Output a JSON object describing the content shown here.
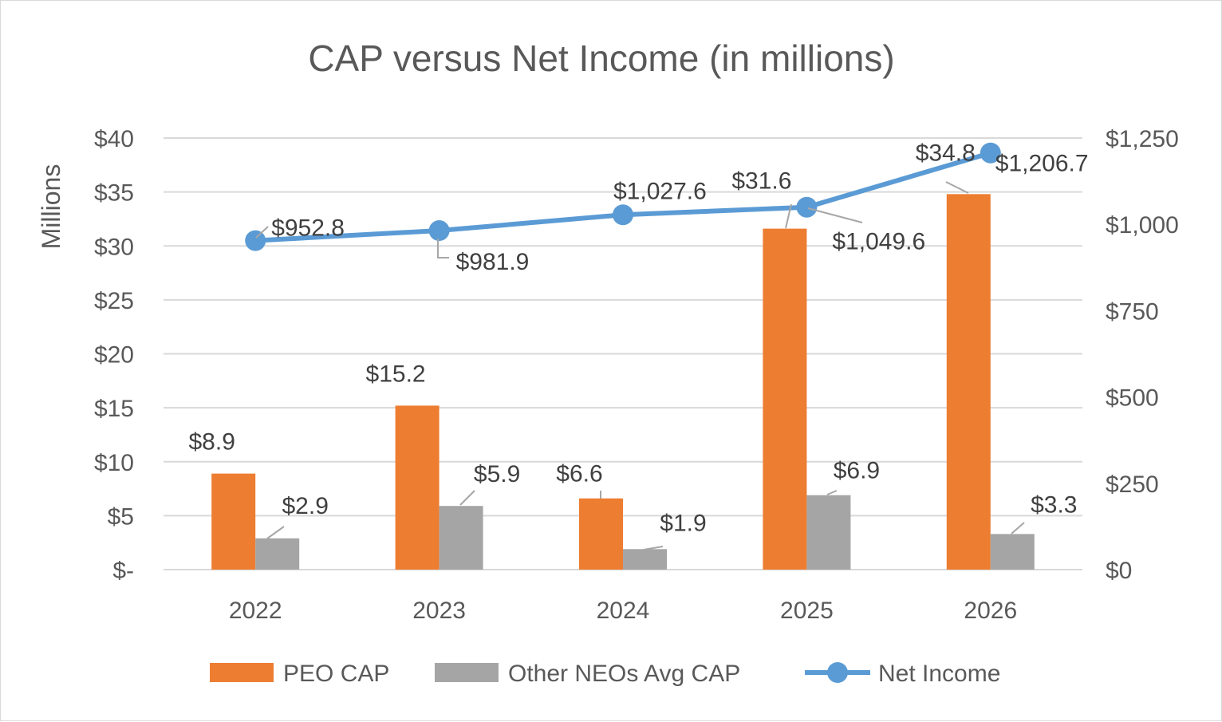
{
  "chart_data": {
    "type": "bar",
    "title": "CAP versus Net Income (in millions)",
    "categories": [
      "2022",
      "2023",
      "2024",
      "2025",
      "2026"
    ],
    "series": [
      {
        "name": "PEO CAP",
        "type": "bar",
        "axis": "left",
        "color": "#ed7d31",
        "values": [
          8.9,
          15.2,
          6.6,
          31.6,
          34.8
        ],
        "labels": [
          "$8.9",
          "$15.2",
          "$6.6",
          "$31.6",
          "$34.8"
        ]
      },
      {
        "name": "Other NEOs Avg CAP",
        "type": "bar",
        "axis": "left",
        "color": "#a5a5a5",
        "values": [
          2.9,
          5.9,
          1.9,
          6.9,
          3.3
        ],
        "labels": [
          "$2.9",
          "$5.9",
          "$1.9",
          "$6.9",
          "$3.3"
        ]
      },
      {
        "name": "Net Income",
        "type": "line",
        "axis": "right",
        "color": "#5b9bd5",
        "values": [
          952.8,
          981.9,
          1027.6,
          1049.6,
          1206.7
        ],
        "labels": [
          "$952.8",
          "$981.9",
          "$1,027.6",
          "$1,049.6",
          "$1,206.7"
        ]
      }
    ],
    "y_left": {
      "label": "Millions",
      "range": [
        0,
        40
      ],
      "ticks": [
        0,
        5,
        10,
        15,
        20,
        25,
        30,
        35,
        40
      ],
      "tick_labels": [
        "$-",
        "$5",
        "$10",
        "$15",
        "$20",
        "$25",
        "$30",
        "$35",
        "$40"
      ]
    },
    "y_right": {
      "range": [
        0,
        1250
      ],
      "ticks": [
        0,
        250,
        500,
        750,
        1000,
        1250
      ],
      "tick_labels": [
        "$0",
        "$250",
        "$500",
        "$750",
        "$1,000",
        "$1,250"
      ]
    },
    "grid": true,
    "gridline_color": "#d9d9d9",
    "legend_position": "bottom"
  }
}
